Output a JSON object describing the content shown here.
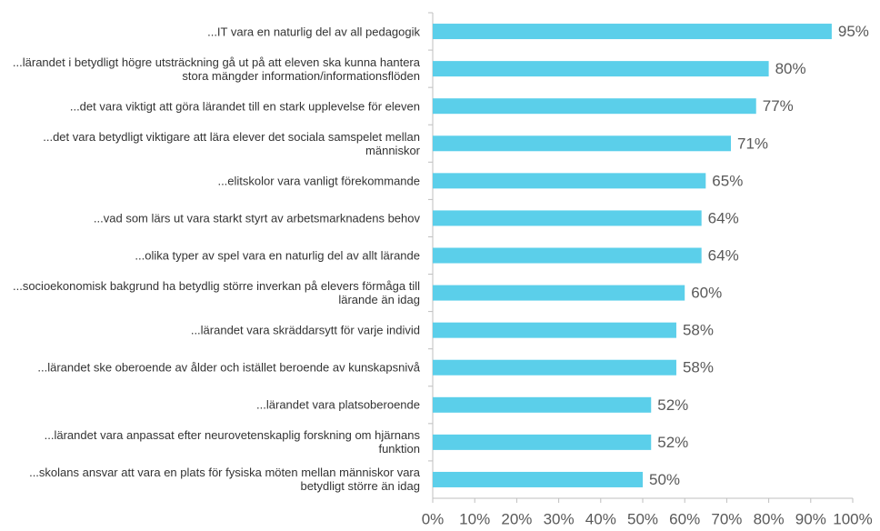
{
  "chart_data": {
    "type": "bar",
    "orientation": "horizontal",
    "categories": [
      "...IT vara en naturlig del av all pedagogik",
      "...lärandet i betydligt högre utsträckning gå ut på att eleven ska kunna hantera stora mängder information/informationsflöden",
      "...det vara viktigt att göra lärandet till en stark upplevelse för eleven",
      "...det vara betydligt viktigare att lära elever det sociala samspelet mellan människor",
      "...elitskolor vara vanligt förekommande",
      "...vad som lärs ut vara starkt styrt av arbetsmarknadens behov",
      "...olika typer av spel vara en naturlig del av allt lärande",
      "...socioekonomisk bakgrund ha betydlig större inverkan på elevers förmåga till lärande än idag",
      "...lärandet vara skräddarsytt för varje individ",
      "...lärandet ske oberoende av ålder och istället beroende av kunskapsnivå",
      "...lärandet vara platsoberoende",
      "...lärandet vara anpassat efter neurovetenskaplig forskning om hjärnans funktion",
      "...skolans ansvar att vara en plats för fysiska möten mellan människor vara betydligt större än idag"
    ],
    "values": [
      95,
      80,
      77,
      71,
      65,
      64,
      64,
      60,
      58,
      58,
      52,
      52,
      50
    ],
    "value_labels": [
      "95%",
      "80%",
      "77%",
      "71%",
      "65%",
      "64%",
      "64%",
      "60%",
      "58%",
      "58%",
      "52%",
      "52%",
      "50%"
    ],
    "color": "#5bcfea",
    "xlim": [
      0,
      100
    ],
    "xticks": [
      {
        "value": 0,
        "label": "0%"
      },
      {
        "value": 10,
        "label": "10%"
      },
      {
        "value": 20,
        "label": "20%"
      },
      {
        "value": 30,
        "label": "30%"
      },
      {
        "value": 40,
        "label": "40%"
      },
      {
        "value": 50,
        "label": "50%"
      },
      {
        "value": 60,
        "label": "60%"
      },
      {
        "value": 70,
        "label": "70%"
      },
      {
        "value": 80,
        "label": "80%"
      },
      {
        "value": 90,
        "label": "90%"
      },
      {
        "value": 100,
        "label": "100%"
      }
    ]
  }
}
